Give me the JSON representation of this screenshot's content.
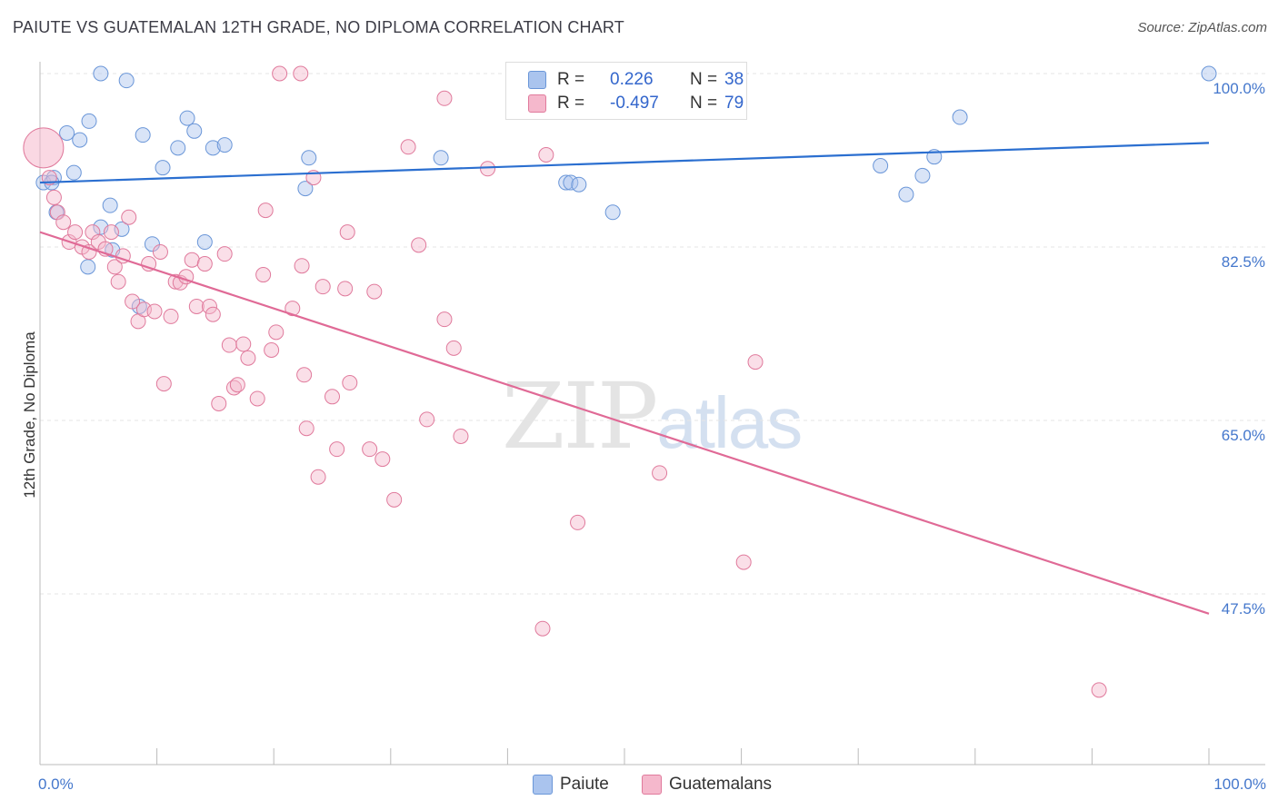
{
  "title": "PAIUTE VS GUATEMALAN 12TH GRADE, NO DIPLOMA CORRELATION CHART",
  "source": "Source: ZipAtlas.com",
  "watermark": {
    "zip": "ZIP",
    "atlas": "atlas"
  },
  "legend": {
    "rows": [
      {
        "r_label": "R =",
        "r_value": "0.226",
        "n_label": "N =",
        "n_value": "38",
        "color": "#aac4ee",
        "border": "#6a96d8"
      },
      {
        "r_label": "R =",
        "r_value": "-0.497",
        "n_label": "N =",
        "n_value": "79",
        "color": "#f5b8cc",
        "border": "#e07a9c"
      }
    ]
  },
  "bottom_legend": [
    {
      "label": "Paiute",
      "color": "#aac4ee",
      "border": "#6a96d8"
    },
    {
      "label": "Guatemalans",
      "color": "#f5b8cc",
      "border": "#e07a9c"
    }
  ],
  "chart_data": {
    "type": "scatter",
    "title": "PAIUTE VS GUATEMALAN 12TH GRADE, NO DIPLOMA CORRELATION CHART",
    "xlabel": "",
    "ylabel": "12th Grade, No Diploma",
    "xlim": [
      0,
      100
    ],
    "ylim": [
      30,
      102
    ],
    "x_tick_labels": [
      "0.0%",
      "100.0%"
    ],
    "y_ticks": [
      47.5,
      65.0,
      82.5,
      100.0
    ],
    "y_tick_labels": [
      "47.5%",
      "65.0%",
      "82.5%",
      "100.0%"
    ],
    "grid": true,
    "legend_placement": "top-center",
    "series": [
      {
        "name": "Paiute",
        "color": "#6a96d8",
        "fill": "#aac4ee",
        "trend": {
          "x": [
            0,
            100
          ],
          "y": [
            89.0,
            93.0
          ]
        },
        "points": [
          [
            0.3,
            89.0
          ],
          [
            1.2,
            89.5
          ],
          [
            2.9,
            90.0
          ],
          [
            1.4,
            86.0
          ],
          [
            2.3,
            94.0
          ],
          [
            3.4,
            93.3
          ],
          [
            4.2,
            95.2
          ],
          [
            5.2,
            100.0
          ],
          [
            7.4,
            99.3
          ],
          [
            4.1,
            80.5
          ],
          [
            6.0,
            86.7
          ],
          [
            6.2,
            82.2
          ],
          [
            5.2,
            84.5
          ],
          [
            7.0,
            84.3
          ],
          [
            8.5,
            76.5
          ],
          [
            8.8,
            93.8
          ],
          [
            9.6,
            82.8
          ],
          [
            10.5,
            90.5
          ],
          [
            11.8,
            92.5
          ],
          [
            12.6,
            95.5
          ],
          [
            13.2,
            94.2
          ],
          [
            14.1,
            83.0
          ],
          [
            14.8,
            92.5
          ],
          [
            15.8,
            92.8
          ],
          [
            22.7,
            88.4
          ],
          [
            23.0,
            91.5
          ],
          [
            34.3,
            91.5
          ],
          [
            45.0,
            89.0
          ],
          [
            45.4,
            89.0
          ],
          [
            46.1,
            88.8
          ],
          [
            49.0,
            86.0
          ],
          [
            71.9,
            90.7
          ],
          [
            74.1,
            87.8
          ],
          [
            75.5,
            89.7
          ],
          [
            76.5,
            91.6
          ],
          [
            78.7,
            95.6
          ],
          [
            100.0,
            100.0
          ],
          [
            1.0,
            89.0
          ]
        ]
      },
      {
        "name": "Guatemalans",
        "color": "#e07a9c",
        "fill": "#f5b8cc",
        "trend": {
          "x": [
            0,
            100
          ],
          "y": [
            84.0,
            45.5
          ]
        },
        "points": [
          [
            0.3,
            92.5
          ],
          [
            0.8,
            89.5
          ],
          [
            1.2,
            87.5
          ],
          [
            1.5,
            86.0
          ],
          [
            2.0,
            85.0
          ],
          [
            2.5,
            83.0
          ],
          [
            3.0,
            84.0
          ],
          [
            3.6,
            82.5
          ],
          [
            4.2,
            82.0
          ],
          [
            4.5,
            84.0
          ],
          [
            5.0,
            83.0
          ],
          [
            5.6,
            82.3
          ],
          [
            6.1,
            84.0
          ],
          [
            6.4,
            80.5
          ],
          [
            6.7,
            79.0
          ],
          [
            7.1,
            81.6
          ],
          [
            7.6,
            85.5
          ],
          [
            7.9,
            77.0
          ],
          [
            8.4,
            75.0
          ],
          [
            8.9,
            76.2
          ],
          [
            9.3,
            80.8
          ],
          [
            9.8,
            76.0
          ],
          [
            10.3,
            82.0
          ],
          [
            10.6,
            68.7
          ],
          [
            11.2,
            75.5
          ],
          [
            11.6,
            79.0
          ],
          [
            12.0,
            78.9
          ],
          [
            12.5,
            79.5
          ],
          [
            13.0,
            81.2
          ],
          [
            13.4,
            76.5
          ],
          [
            14.1,
            80.8
          ],
          [
            14.5,
            76.5
          ],
          [
            14.8,
            75.7
          ],
          [
            15.3,
            66.7
          ],
          [
            15.8,
            81.8
          ],
          [
            16.2,
            72.6
          ],
          [
            16.6,
            68.3
          ],
          [
            16.9,
            68.6
          ],
          [
            17.4,
            72.7
          ],
          [
            17.8,
            71.3
          ],
          [
            18.6,
            67.2
          ],
          [
            19.1,
            79.7
          ],
          [
            19.3,
            86.2
          ],
          [
            19.8,
            72.1
          ],
          [
            20.2,
            73.9
          ],
          [
            21.6,
            76.3
          ],
          [
            22.4,
            80.6
          ],
          [
            22.6,
            69.6
          ],
          [
            22.8,
            64.2
          ],
          [
            23.4,
            89.5
          ],
          [
            23.8,
            59.3
          ],
          [
            24.2,
            78.5
          ],
          [
            25.0,
            67.4
          ],
          [
            25.4,
            62.1
          ],
          [
            26.1,
            78.3
          ],
          [
            26.3,
            84.0
          ],
          [
            26.5,
            68.8
          ],
          [
            28.2,
            62.1
          ],
          [
            28.6,
            78.0
          ],
          [
            29.3,
            61.1
          ],
          [
            30.3,
            57.0
          ],
          [
            31.5,
            92.6
          ],
          [
            32.4,
            82.7
          ],
          [
            33.1,
            65.1
          ],
          [
            34.6,
            75.2
          ],
          [
            34.6,
            97.5
          ],
          [
            35.4,
            72.3
          ],
          [
            36.0,
            63.4
          ],
          [
            38.3,
            90.4
          ],
          [
            43.0,
            44.0
          ],
          [
            43.3,
            91.8
          ],
          [
            46.0,
            54.7
          ],
          [
            53.0,
            59.7
          ],
          [
            58.9,
            100.0
          ],
          [
            60.2,
            50.7
          ],
          [
            61.2,
            70.9
          ],
          [
            90.6,
            37.8
          ],
          [
            22.3,
            100.0
          ],
          [
            20.5,
            100.0
          ]
        ]
      }
    ]
  }
}
